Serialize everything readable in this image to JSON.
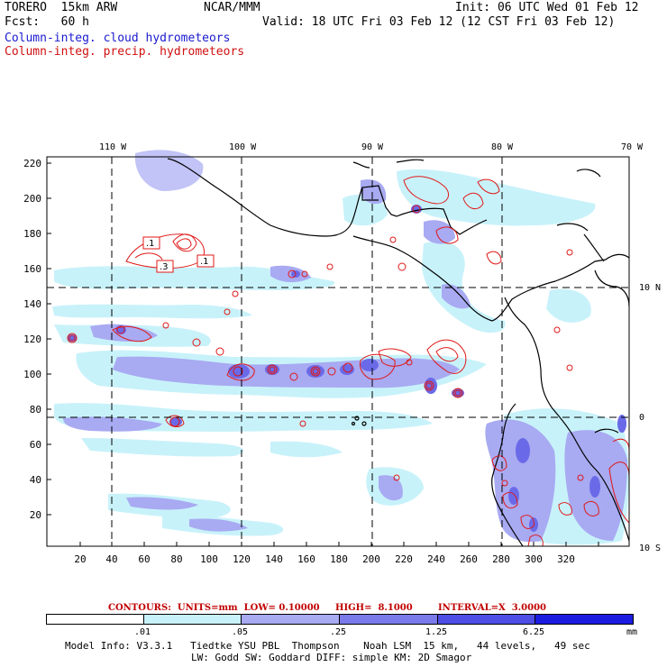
{
  "header": {
    "model": "TORERO  15km ARW",
    "org": "NCAR/MMM",
    "init": "Init: 06 UTC Wed 01 Feb 12",
    "fcst": "Fcst:   60 h",
    "valid": "Valid: 18 UTC Fri 03 Feb 12 (12 CST Fri 03 Feb 12)",
    "field1": "Column-integ. cloud hydrometeors",
    "field2": "Column-integ. precip. hydrometeors"
  },
  "map": {
    "lon_labels": [
      "110 W",
      "100 W",
      "90 W",
      "80 W",
      "70 W"
    ],
    "lat_labels": [
      "10 N",
      "0",
      "10 S"
    ],
    "y_ticks": [
      "220",
      "200",
      "180",
      "160",
      "140",
      "120",
      "100",
      "80",
      "60",
      "40",
      "20"
    ],
    "x_ticks": [
      "20",
      "40",
      "60",
      "80",
      "100",
      "120",
      "140",
      "160",
      "180",
      "200",
      "220",
      "240",
      "260",
      "280",
      "300",
      "320"
    ],
    "contour_labels": [
      ".1",
      ".3",
      ".1"
    ],
    "colors": {
      "frame": "#000000",
      "grid": "#000000",
      "coast": "#000000",
      "contour": "#e01818",
      "fill_light": "#c8f2fa",
      "fill_mid": "#a8aaf2",
      "fill_dark": "#6a6ae8",
      "fill_darker": "#4444e0"
    }
  },
  "contour_info": {
    "contours": "CONTOURS:  UNITS=mm  LOW= 0.10000",
    "high": "HIGH=  8.1000",
    "interval": "INTERVAL=X  3.0000"
  },
  "legend": {
    "ticks": [
      ".01",
      ".05",
      ".25",
      "1.25",
      "6.25"
    ],
    "units": "mm",
    "colors": [
      "#ffffff",
      "#c8f2fa",
      "#a8aaf2",
      "#7a7aea",
      "#4e4ee4",
      "#1c1ce0"
    ]
  },
  "footer": {
    "line1": "Model Info: V3.3.1   Tiedtke YSU PBL  Thompson    Noah LSM  15 km,   44 levels,   49 sec",
    "line2": "LW: Godd SW: Goddard DIFF: simple KM: 2D Smagor"
  }
}
